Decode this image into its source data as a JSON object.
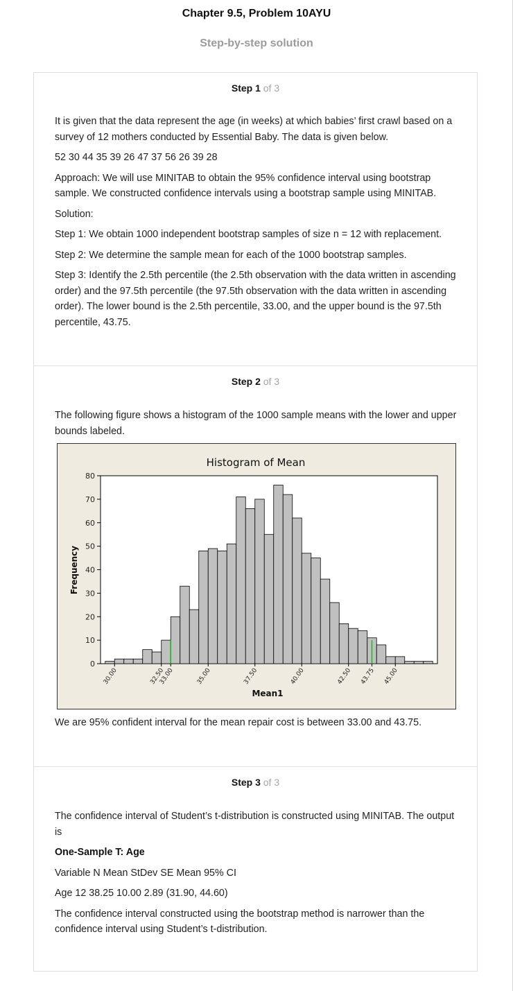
{
  "header": {
    "title": "Chapter 9.5, Problem 10AYU",
    "subtitle": "Step-by-step solution"
  },
  "steps": [
    {
      "number": "Step 1",
      "total": "of 3",
      "paragraphs": [
        "It is given that the data represent the age (in weeks) at which babies’ first crawl based on a survey of 12 mothers conducted by Essential Baby. The data is given below.",
        "52 30 44 35 39 26 47 37 56 26 39 28",
        "Approach: We will use MINITAB to obtain the 95% confidence interval using bootstrap sample. We constructed confidence intervals using a bootstrap sample using MINITAB.",
        "Solution:",
        "Step 1: We obtain 1000 independent bootstrap samples of size n = 12 with replacement.",
        "Step 2: We determine the sample mean for each of the 1000 bootstrap samples.",
        "Step 3: Identify the 2.5th percentile (the 2.5th observation with the data written in ascending order) and the 97.5th percentile (the 97.5th observation with the data written in ascending order). The lower bound is the 2.5th percentile, 33.00, and the upper bound is the 97.5th percentile, 43.75."
      ]
    },
    {
      "number": "Step 2",
      "total": "of 3",
      "intro": "The following figure shows a histogram of the 1000 sample means with the lower and upper bounds labeled.",
      "conclusion": "We are 95% confident interval for the mean repair cost is between 33.00 and 43.75."
    },
    {
      "number": "Step 3",
      "total": "of 3",
      "paragraphs": [
        "The confidence interval of Student’s t-distribution is constructed using MINITAB. The output is",
        "One-Sample T: Age",
        "Variable N Mean StDev SE Mean 95% CI",
        "Age 12 38.25 10.00 2.89 (31.90, 44.60)",
        "The confidence interval constructed using the bootstrap method is narrower than the confidence interval using Student’s t-distribution."
      ]
    }
  ],
  "chart_data": {
    "type": "bar",
    "title": "Histogram of Mean",
    "xlabel": "Mean1",
    "ylabel": "Frequency",
    "bin_width": 0.5,
    "bin_start": 29.5,
    "values": [
      1,
      2,
      2,
      2,
      6,
      5,
      10,
      20,
      33,
      23,
      48,
      49,
      48,
      51,
      71,
      66,
      70,
      55,
      76,
      72,
      62,
      47,
      45,
      36,
      26,
      17,
      15,
      14,
      11,
      8,
      3,
      3,
      1,
      1,
      1
    ],
    "ylim": [
      0,
      80
    ],
    "yticks": [
      "0",
      "10",
      "20",
      "30",
      "40",
      "50",
      "60",
      "70",
      "80"
    ],
    "xlim": [
      29.25,
      47.25
    ],
    "xticks": [
      {
        "value": 30.0,
        "label": "30.00"
      },
      {
        "value": 32.5,
        "label": "32.50"
      },
      {
        "value": 33.0,
        "label": "33.00"
      },
      {
        "value": 35.0,
        "label": "35.00"
      },
      {
        "value": 37.5,
        "label": "37.50"
      },
      {
        "value": 40.0,
        "label": "40.00"
      },
      {
        "value": 42.5,
        "label": "42.50"
      },
      {
        "value": 43.75,
        "label": "43.75"
      },
      {
        "value": 45.0,
        "label": "45.00"
      }
    ],
    "reference_lines": [
      33.0,
      43.75
    ],
    "colors": {
      "bar_fill": "#c0c0c0",
      "bar_stroke": "#000000",
      "reference_line": "#00c000",
      "background": "#efebe0",
      "plot_area": "#ffffff"
    },
    "grid": false,
    "legend": "none"
  }
}
